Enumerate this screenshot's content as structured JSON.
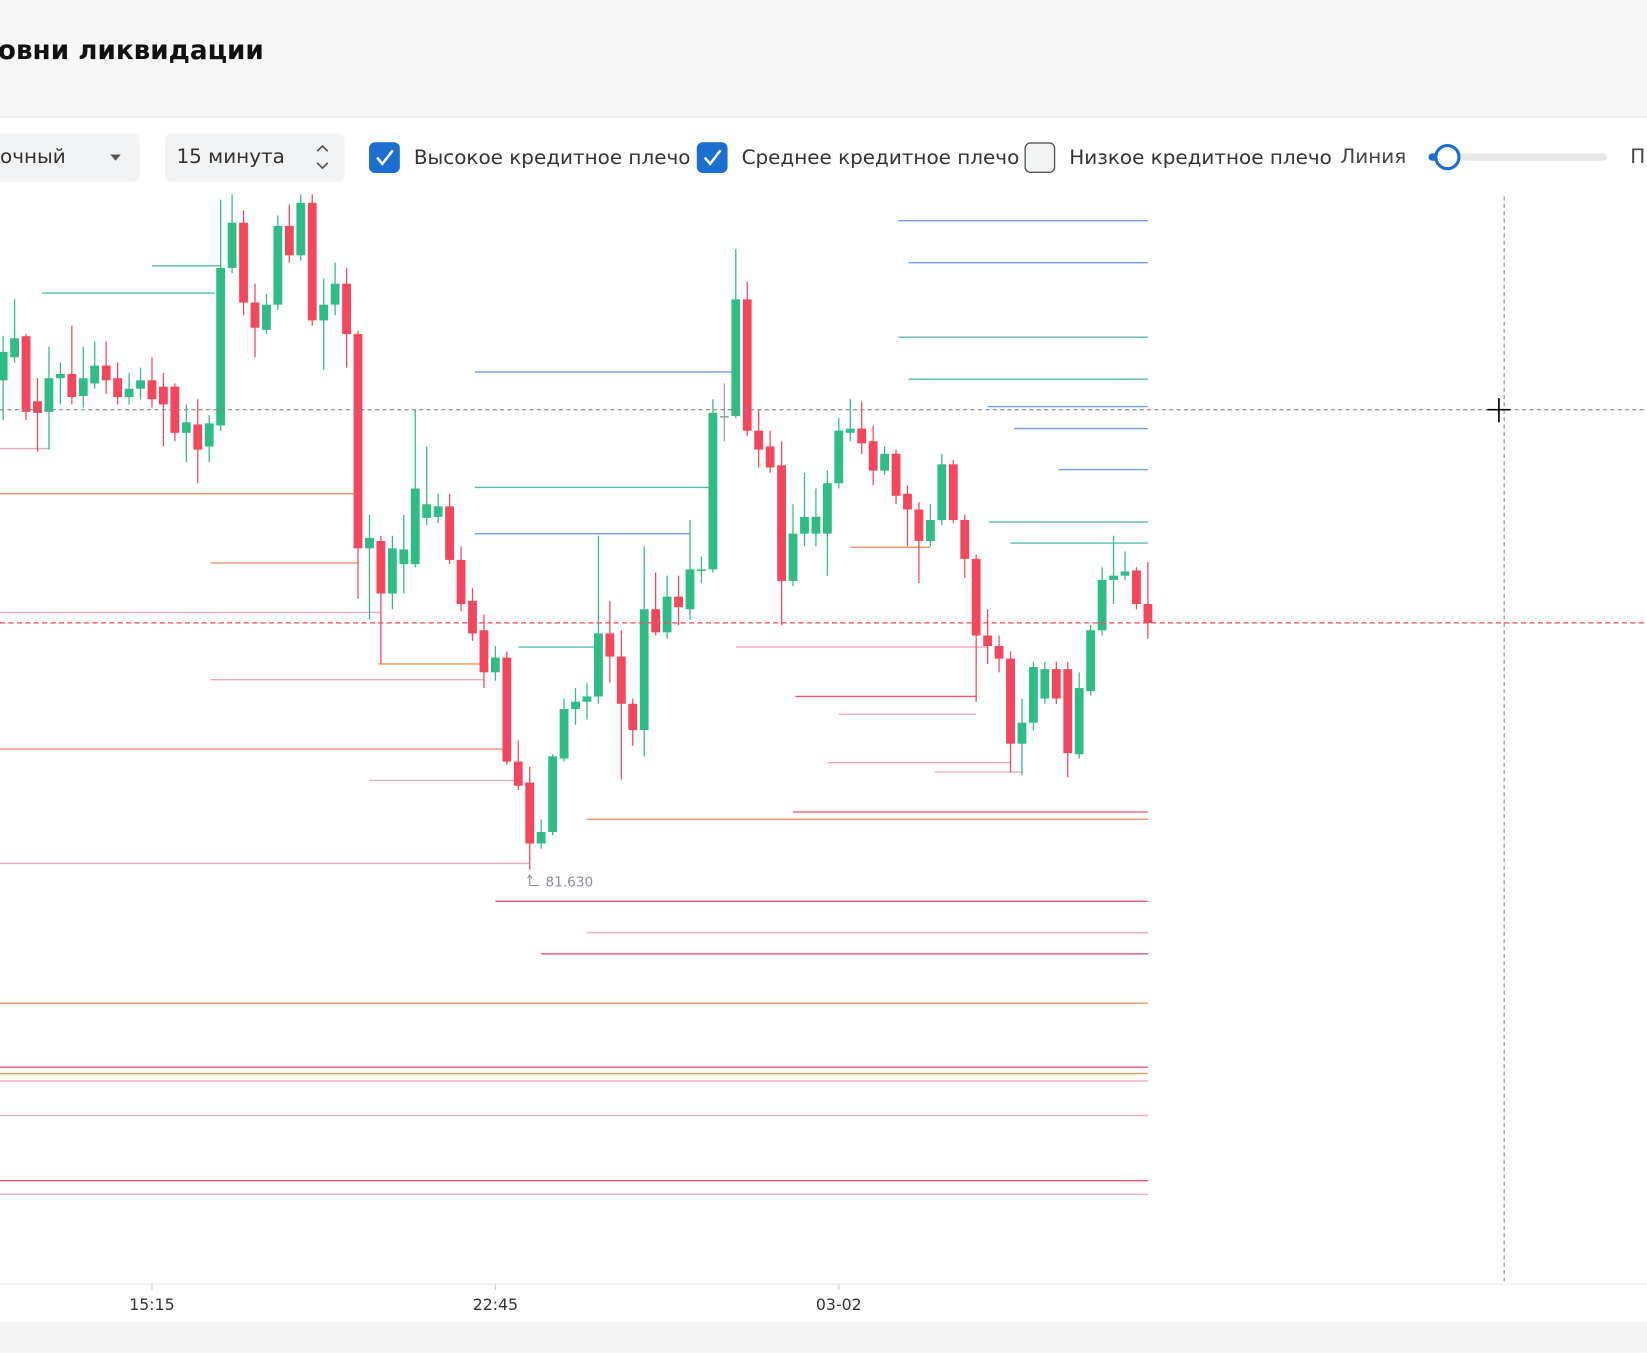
{
  "header": {
    "title": "овни ликвидации"
  },
  "toolbar": {
    "type_select": "очный",
    "interval_select": "15 минута",
    "checkboxes": [
      {
        "label": "Высокое кредитное плечо",
        "checked": true
      },
      {
        "label": "Среднее кредитное плечо",
        "checked": true
      },
      {
        "label": "Низкое кредитное плечо",
        "checked": false
      }
    ],
    "line_label": "Линия",
    "cut_label": "П"
  },
  "chart_data": {
    "type": "candlestick",
    "xlim": [
      -0.275,
      143.6
    ],
    "ylim": [
      81.236,
      82.271
    ],
    "xticks": [
      {
        "value": 13,
        "label": "15:15"
      },
      {
        "value": 43,
        "label": "22:45"
      },
      {
        "value": 73,
        "label": "03-02"
      }
    ],
    "colors": {
      "up": "#2ebd85",
      "down": "#f6465d",
      "flat": "#9aa0a6"
    },
    "open": [
      82.096,
      82.118,
      82.138,
      82.076,
      82.066,
      82.098,
      82.102,
      82.081,
      82.093,
      82.11,
      82.098,
      82.08,
      82.088,
      82.096,
      82.09,
      82.09,
      82.046,
      82.054,
      82.033,
      82.053,
      82.203,
      82.246,
      82.17,
      82.144,
      82.168,
      82.243,
      82.215,
      82.265,
      82.153,
      82.168,
      82.188,
      82.14,
      81.936,
      81.943,
      81.893,
      81.921,
      81.921,
      81.965,
      81.966,
      81.976,
      81.925,
      81.886,
      81.858,
      81.818,
      81.832,
      81.733,
      81.713,
      81.655,
      81.666,
      81.736,
      81.783,
      81.79,
      81.795,
      81.855,
      81.833,
      81.788,
      81.763,
      81.878,
      81.856,
      81.89,
      81.878,
      81.915,
      81.916,
      82.062,
      82.062,
      82.173,
      82.048,
      82.033,
      82.015,
      81.905,
      81.95,
      81.95,
      81.95,
      81.998,
      82.046,
      82.05,
      82.038,
      82.01,
      82.026,
      81.988,
      81.973,
      81.943,
      81.963,
      82.016,
      81.963,
      81.926,
      81.853,
      81.843,
      81.831,
      81.75,
      81.77,
      81.793,
      81.821,
      81.821,
      81.74,
      81.8,
      81.858,
      81.906,
      81.91,
      81.915,
      81.883
    ],
    "high": [
      82.138,
      82.173,
      82.14,
      82.098,
      82.128,
      82.113,
      82.148,
      82.128,
      82.133,
      82.133,
      82.113,
      82.103,
      82.108,
      82.118,
      82.103,
      82.093,
      82.073,
      82.078,
      82.063,
      82.268,
      82.273,
      82.258,
      82.188,
      82.178,
      82.253,
      82.263,
      82.273,
      82.273,
      82.193,
      82.208,
      82.203,
      82.143,
      81.968,
      81.948,
      81.948,
      81.968,
      82.068,
      82.033,
      81.988,
      81.988,
      81.938,
      81.898,
      81.873,
      81.843,
      81.838,
      81.753,
      81.728,
      81.678,
      81.74,
      81.793,
      81.803,
      81.808,
      81.948,
      81.886,
      81.858,
      81.793,
      81.938,
      81.913,
      81.91,
      81.91,
      81.963,
      81.928,
      82.078,
      82.093,
      82.221,
      82.19,
      82.068,
      82.048,
      82.038,
      81.978,
      82.008,
      81.993,
      82.01,
      82.06,
      82.078,
      82.076,
      82.053,
      82.033,
      82.03,
      81.996,
      81.98,
      81.978,
      82.026,
      82.02,
      81.968,
      81.93,
      81.878,
      81.853,
      81.838,
      81.793,
      81.828,
      81.828,
      81.828,
      81.828,
      81.818,
      81.863,
      81.918,
      81.948,
      81.933,
      81.918,
      81.923
    ],
    "low": [
      82.058,
      82.113,
      82.058,
      82.028,
      82.03,
      82.073,
      82.073,
      82.07,
      82.088,
      82.083,
      82.073,
      82.073,
      82.078,
      82.07,
      82.033,
      82.038,
      82.018,
      81.998,
      82.018,
      82.048,
      82.198,
      82.158,
      82.118,
      82.14,
      82.163,
      82.208,
      82.21,
      82.148,
      82.106,
      82.158,
      82.108,
      81.888,
      81.868,
      81.826,
      81.878,
      81.893,
      81.918,
      81.958,
      81.96,
      81.921,
      81.876,
      81.848,
      81.803,
      81.81,
      81.73,
      81.706,
      81.63,
      81.65,
      81.663,
      81.733,
      81.768,
      81.773,
      81.788,
      81.808,
      81.716,
      81.748,
      81.738,
      81.853,
      81.85,
      81.863,
      81.868,
      81.903,
      81.913,
      82.038,
      82.06,
      82.043,
      82.013,
      82.008,
      81.863,
      81.9,
      81.938,
      81.938,
      81.91,
      81.993,
      82.038,
      82.026,
      81.996,
      82.006,
      81.978,
      81.938,
      81.903,
      81.938,
      81.958,
      81.96,
      81.908,
      81.79,
      81.826,
      81.818,
      81.723,
      81.72,
      81.763,
      81.788,
      81.788,
      81.718,
      81.736,
      81.796,
      81.853,
      81.883,
      81.906,
      81.878,
      81.85
    ],
    "close": [
      82.123,
      82.136,
      82.066,
      82.065,
      82.098,
      82.102,
      82.08,
      82.098,
      82.11,
      82.096,
      82.08,
      82.088,
      82.096,
      82.078,
      82.073,
      82.046,
      82.056,
      82.03,
      82.055,
      82.203,
      82.246,
      82.17,
      82.146,
      82.168,
      82.243,
      82.215,
      82.265,
      82.153,
      82.168,
      82.188,
      82.14,
      81.936,
      81.946,
      81.893,
      81.936,
      81.935,
      81.993,
      81.978,
      81.976,
      81.925,
      81.883,
      81.855,
      81.818,
      81.832,
      81.733,
      81.71,
      81.655,
      81.666,
      81.738,
      81.783,
      81.79,
      81.795,
      81.855,
      81.833,
      81.788,
      81.763,
      81.878,
      81.856,
      81.89,
      81.88,
      81.916,
      81.916,
      82.065,
      82.062,
      82.173,
      82.048,
      82.03,
      82.013,
      81.905,
      81.95,
      81.966,
      81.966,
      81.998,
      82.048,
      82.05,
      82.036,
      82.01,
      82.026,
      81.986,
      81.973,
      81.943,
      81.963,
      82.016,
      81.963,
      81.926,
      81.853,
      81.843,
      81.831,
      81.75,
      81.77,
      81.823,
      81.821,
      81.793,
      81.741,
      81.803,
      81.858,
      81.906,
      81.91,
      81.914,
      81.883,
      81.865
    ],
    "low_annotation": "81.630",
    "levels": [
      {
        "price": 82.248,
        "from": 78.2,
        "to": 100,
        "color": "#5b8def"
      },
      {
        "price": 82.208,
        "from": 79.1,
        "to": 100,
        "color": "#5b8def"
      },
      {
        "price": 82.137,
        "from": 78.2,
        "to": 100,
        "color": "#3fae9e"
      },
      {
        "price": 82.097,
        "from": 79.1,
        "to": 100,
        "color": "#3fae9e"
      },
      {
        "price": 82.071,
        "from": 86,
        "to": 100,
        "color": "#5b8def"
      },
      {
        "price": 82.05,
        "from": 88.3,
        "to": 100,
        "color": "#5b8def"
      },
      {
        "price": 82.011,
        "from": 92.2,
        "to": 100,
        "color": "#5b8def"
      },
      {
        "price": 81.961,
        "from": 86.1,
        "to": 100,
        "color": "#3fae9e"
      },
      {
        "price": 81.941,
        "from": 88,
        "to": 100,
        "color": "#3fae9e"
      },
      {
        "price": 82.179,
        "from": 3.4,
        "to": 18.5,
        "color": "#3fae9e"
      },
      {
        "price": 82.205,
        "from": 13,
        "to": 19,
        "color": "#3fae9e"
      },
      {
        "price": 82.104,
        "from": 41.2,
        "to": 64,
        "color": "#5b8def"
      },
      {
        "price": 81.994,
        "from": 41.2,
        "to": 62,
        "color": "#3fae9e"
      },
      {
        "price": 81.95,
        "from": 41.2,
        "to": 60,
        "color": "#5b8def"
      },
      {
        "price": 81.842,
        "from": 45,
        "to": 52,
        "color": "#3fae9e"
      },
      {
        "price": 81.988,
        "from": -0.3,
        "to": 31,
        "color": "#e8834a"
      },
      {
        "price": 82.031,
        "from": -0.3,
        "to": 4,
        "color": "#f39ab3"
      },
      {
        "price": 81.922,
        "from": 18.1,
        "to": 31,
        "color": "#e8834a"
      },
      {
        "price": 81.875,
        "from": -0.3,
        "to": 33,
        "color": "#f39ab3"
      },
      {
        "price": 81.826,
        "from": 32.8,
        "to": 42,
        "color": "#e8834a"
      },
      {
        "price": 81.811,
        "from": 18.1,
        "to": 42,
        "color": "#f39ab3"
      },
      {
        "price": 81.745,
        "from": -0.3,
        "to": 44,
        "color": "#e8834a"
      },
      {
        "price": 81.715,
        "from": 32,
        "to": 45,
        "color": "#f39ab3"
      },
      {
        "price": 81.636,
        "from": -0.3,
        "to": 46,
        "color": "#f39ab3"
      },
      {
        "price": 81.842,
        "from": 64,
        "to": 86,
        "color": "#f39ab3"
      },
      {
        "price": 81.795,
        "from": 69.2,
        "to": 85,
        "color": "#e8365d"
      },
      {
        "price": 81.778,
        "from": 73,
        "to": 85,
        "color": "#f39ab3"
      },
      {
        "price": 81.732,
        "from": 72,
        "to": 88,
        "color": "#f39ab3"
      },
      {
        "price": 81.723,
        "from": 81.4,
        "to": 89,
        "color": "#f39ab3"
      },
      {
        "price": 81.937,
        "from": 74,
        "to": 81,
        "color": "#e8834a"
      },
      {
        "price": 81.685,
        "from": 69,
        "to": 100,
        "color": "#e8365d"
      },
      {
        "price": 81.678,
        "from": 51,
        "to": 100,
        "color": "#e8834a"
      },
      {
        "price": 81.6,
        "from": 43,
        "to": 100,
        "color": "#e8365d"
      },
      {
        "price": 81.57,
        "from": 51,
        "to": 100,
        "color": "#f39ab3"
      },
      {
        "price": 81.55,
        "from": 47,
        "to": 100,
        "color": "#e8365d"
      },
      {
        "price": 81.503,
        "from": -0.3,
        "to": 100,
        "color": "#e8834a"
      },
      {
        "price": 81.442,
        "from": -0.3,
        "to": 100,
        "color": "#e8365d"
      },
      {
        "price": 81.436,
        "from": -0.3,
        "to": 100,
        "color": "#e8834a"
      },
      {
        "price": 81.429,
        "from": -0.3,
        "to": 100,
        "color": "#f39ab3"
      },
      {
        "price": 81.396,
        "from": -0.3,
        "to": 100,
        "color": "#f39ab3"
      },
      {
        "price": 81.334,
        "from": -0.3,
        "to": 100,
        "color": "#e8365d"
      },
      {
        "price": 81.321,
        "from": -0.3,
        "to": 100,
        "color": "#f39ab3"
      }
    ]
  }
}
